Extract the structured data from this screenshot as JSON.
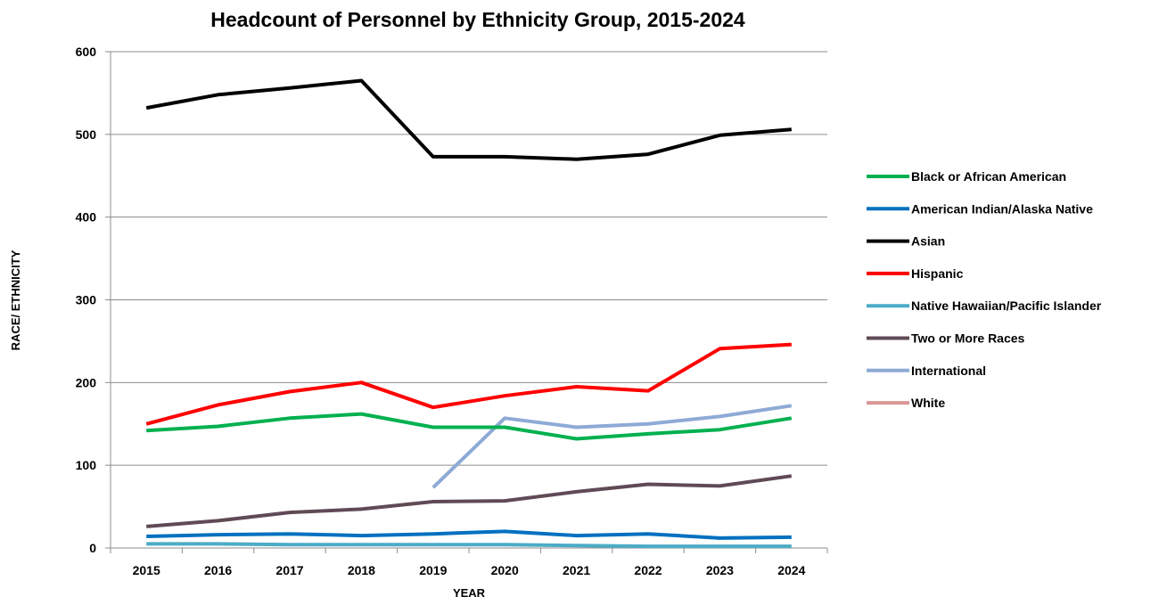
{
  "chart_data": {
    "type": "line",
    "title": "Headcount of Personnel by Ethnicity Group, 2015-2024",
    "xlabel": "YEAR",
    "ylabel": "RACE/ ETHNICITY",
    "x": [
      "2015",
      "2016",
      "2017",
      "2018",
      "2019",
      "2020",
      "2021",
      "2022",
      "2023",
      "2024"
    ],
    "ylim": [
      0,
      600
    ],
    "yticks": [
      0,
      100,
      200,
      300,
      400,
      500,
      600
    ],
    "grid": true,
    "legend_position": "right",
    "series": [
      {
        "name": "Black or African American",
        "color": "#00b050",
        "values": [
          142,
          147,
          157,
          162,
          146,
          146,
          132,
          138,
          143,
          157
        ]
      },
      {
        "name": "American Indian/Alaska Native",
        "color": "#0070c0",
        "values": [
          14,
          16,
          17,
          15,
          17,
          20,
          15,
          17,
          12,
          13
        ]
      },
      {
        "name": "Asian",
        "color": "#000000",
        "values": [
          532,
          548,
          556,
          565,
          473,
          473,
          470,
          476,
          499,
          506
        ]
      },
      {
        "name": "Hispanic",
        "color": "#ff0000",
        "values": [
          150,
          173,
          189,
          200,
          170,
          184,
          195,
          190,
          241,
          246
        ]
      },
      {
        "name": "Native Hawaiian/Pacific Islander",
        "color": "#4bacc6",
        "values": [
          5,
          5,
          4,
          4,
          4,
          4,
          3,
          2,
          2,
          2
        ]
      },
      {
        "name": "Two or More Races",
        "color": "#604a56",
        "values": [
          26,
          33,
          43,
          47,
          56,
          57,
          68,
          77,
          75,
          87
        ]
      },
      {
        "name": "International",
        "color": "#8eaad6",
        "values": [
          null,
          null,
          null,
          null,
          73,
          157,
          146,
          150,
          159,
          172
        ]
      },
      {
        "name": "White",
        "color": "#d99694",
        "values": [
          null,
          null,
          null,
          null,
          null,
          null,
          null,
          null,
          null,
          null
        ]
      }
    ]
  }
}
